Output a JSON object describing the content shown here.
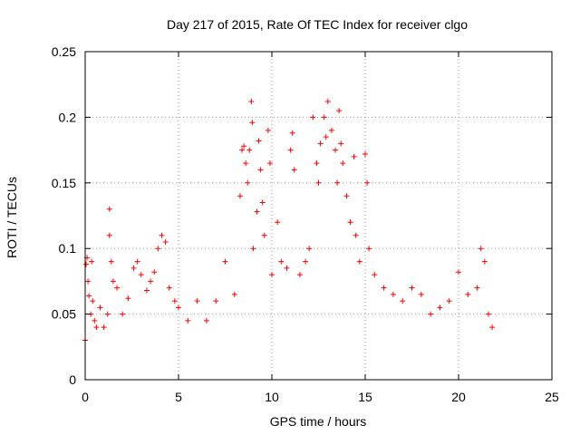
{
  "chart_data": {
    "type": "scatter",
    "title": "Day 217 of 2015, Rate Of TEC Index for receiver clgo",
    "xlabel": "GPS time / hours",
    "ylabel": "ROTI / TECUs",
    "xlim": [
      0,
      25
    ],
    "ylim": [
      0,
      0.25
    ],
    "xticks": [
      0,
      5,
      10,
      15,
      20,
      25
    ],
    "yticks": [
      0,
      0.05,
      0.1,
      0.15,
      0.2,
      0.25
    ],
    "xtick_labels": [
      "0",
      "5",
      "10",
      "15",
      "20",
      "25"
    ],
    "ytick_labels": [
      "0",
      "0.05",
      "0.1",
      "0.15",
      "0.2",
      "0.25"
    ],
    "grid": true,
    "marker": "plus",
    "color": "#ff0000",
    "series": [
      {
        "points": [
          [
            0.0,
            0.03
          ],
          [
            0.05,
            0.088
          ],
          [
            0.1,
            0.093
          ],
          [
            0.15,
            0.075
          ],
          [
            0.2,
            0.064
          ],
          [
            0.3,
            0.05
          ],
          [
            0.35,
            0.09
          ],
          [
            0.4,
            0.06
          ],
          [
            0.5,
            0.045
          ],
          [
            0.6,
            0.04
          ],
          [
            0.8,
            0.055
          ],
          [
            1.0,
            0.04
          ],
          [
            1.2,
            0.05
          ],
          [
            1.3,
            0.13
          ],
          [
            1.3,
            0.11
          ],
          [
            1.4,
            0.09
          ],
          [
            1.5,
            0.075
          ],
          [
            1.7,
            0.07
          ],
          [
            2.0,
            0.05
          ],
          [
            2.3,
            0.062
          ],
          [
            2.6,
            0.085
          ],
          [
            2.8,
            0.09
          ],
          [
            3.0,
            0.08
          ],
          [
            3.3,
            0.068
          ],
          [
            3.5,
            0.075
          ],
          [
            3.7,
            0.082
          ],
          [
            3.9,
            0.1
          ],
          [
            4.1,
            0.11
          ],
          [
            4.3,
            0.105
          ],
          [
            4.5,
            0.07
          ],
          [
            4.8,
            0.06
          ],
          [
            5.0,
            0.055
          ],
          [
            5.5,
            0.045
          ],
          [
            6.0,
            0.06
          ],
          [
            6.5,
            0.045
          ],
          [
            7.0,
            0.06
          ],
          [
            7.5,
            0.09
          ],
          [
            8.0,
            0.065
          ],
          [
            8.3,
            0.14
          ],
          [
            8.4,
            0.175
          ],
          [
            8.5,
            0.178
          ],
          [
            8.6,
            0.165
          ],
          [
            8.7,
            0.15
          ],
          [
            8.8,
            0.175
          ],
          [
            8.9,
            0.212
          ],
          [
            8.95,
            0.196
          ],
          [
            9.0,
            0.1
          ],
          [
            9.2,
            0.128
          ],
          [
            9.3,
            0.182
          ],
          [
            9.4,
            0.16
          ],
          [
            9.5,
            0.135
          ],
          [
            9.6,
            0.11
          ],
          [
            9.8,
            0.19
          ],
          [
            9.9,
            0.165
          ],
          [
            10.0,
            0.08
          ],
          [
            10.3,
            0.12
          ],
          [
            10.5,
            0.09
          ],
          [
            10.8,
            0.085
          ],
          [
            11.0,
            0.175
          ],
          [
            11.1,
            0.188
          ],
          [
            11.2,
            0.16
          ],
          [
            11.5,
            0.08
          ],
          [
            11.8,
            0.09
          ],
          [
            12.0,
            0.1
          ],
          [
            12.2,
            0.2
          ],
          [
            12.4,
            0.165
          ],
          [
            12.5,
            0.15
          ],
          [
            12.6,
            0.18
          ],
          [
            12.8,
            0.2
          ],
          [
            12.9,
            0.185
          ],
          [
            13.0,
            0.212
          ],
          [
            13.2,
            0.19
          ],
          [
            13.4,
            0.175
          ],
          [
            13.5,
            0.15
          ],
          [
            13.6,
            0.205
          ],
          [
            13.7,
            0.18
          ],
          [
            13.8,
            0.165
          ],
          [
            14.0,
            0.14
          ],
          [
            14.2,
            0.12
          ],
          [
            14.4,
            0.17
          ],
          [
            14.5,
            0.11
          ],
          [
            14.7,
            0.09
          ],
          [
            15.0,
            0.172
          ],
          [
            15.1,
            0.15
          ],
          [
            15.2,
            0.1
          ],
          [
            15.5,
            0.08
          ],
          [
            16.0,
            0.07
          ],
          [
            16.5,
            0.065
          ],
          [
            17.0,
            0.06
          ],
          [
            17.5,
            0.07
          ],
          [
            18.0,
            0.065
          ],
          [
            18.5,
            0.05
          ],
          [
            19.0,
            0.055
          ],
          [
            19.5,
            0.06
          ],
          [
            20.0,
            0.082
          ],
          [
            20.5,
            0.065
          ],
          [
            21.0,
            0.07
          ],
          [
            21.2,
            0.1
          ],
          [
            21.4,
            0.09
          ],
          [
            21.6,
            0.05
          ],
          [
            21.8,
            0.04
          ]
        ]
      }
    ]
  }
}
